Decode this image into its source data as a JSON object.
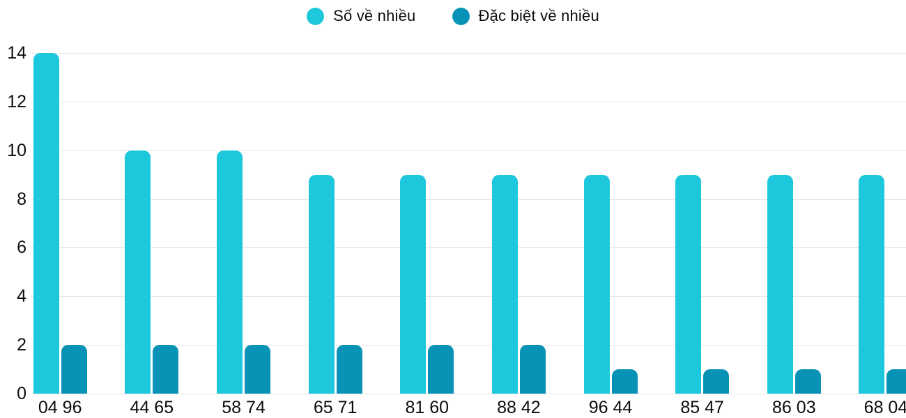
{
  "chart_data": {
    "type": "bar",
    "title": "",
    "categories": [
      "04 96",
      "44 65",
      "58 74",
      "65 71",
      "81 60",
      "88 42",
      "96 44",
      "85 47",
      "86 03",
      "68 04"
    ],
    "series": [
      {
        "name": "Số về nhiều",
        "color": "#1ec8dc",
        "values": [
          14,
          10,
          10,
          9,
          9,
          9,
          9,
          9,
          9,
          9
        ]
      },
      {
        "name": "Đặc biệt về nhiều",
        "color": "#0893b6",
        "values": [
          2,
          2,
          2,
          2,
          2,
          2,
          1,
          1,
          1,
          1
        ]
      }
    ],
    "xlabel": "",
    "ylabel": "",
    "ylim": [
      0,
      14
    ],
    "yticks": [
      0,
      2,
      4,
      6,
      8,
      10,
      12,
      14
    ],
    "grid": true,
    "legend_position": "top",
    "colors": {
      "gridline": "#e6e6e6",
      "text": "#0d0d0d",
      "background": "#ffffff"
    }
  }
}
